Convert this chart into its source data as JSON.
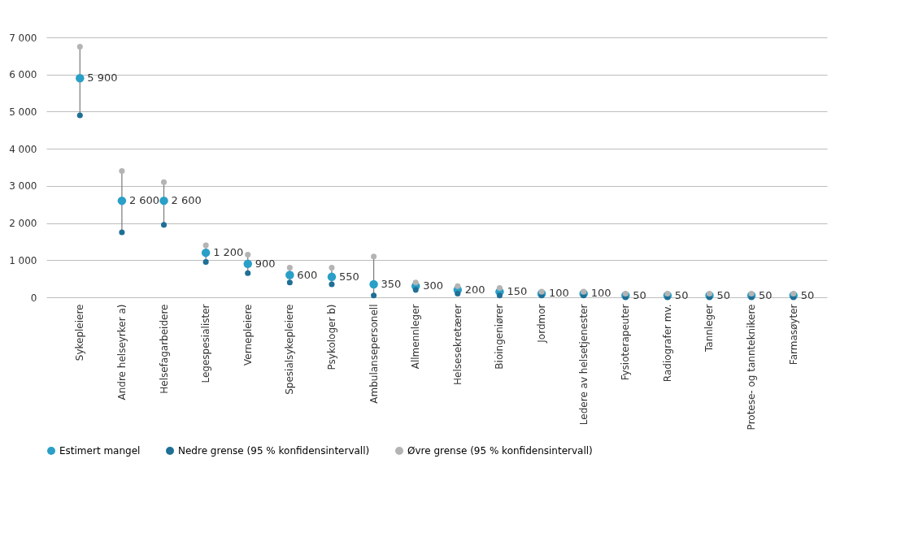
{
  "chart_data": {
    "type": "scatter",
    "categories": [
      "Sykepleiere",
      "Andre helseyrker a)",
      "Helsefagarbeidere",
      "Legespesialister",
      "Vernepleiere",
      "Spesialsykepleiere",
      "Psykologer b)",
      "Ambulansepersonell",
      "Allmennleger",
      "Helsesekretærer",
      "Bioingeniører",
      "Jordmor",
      "Ledere av helsetjenester",
      "Fysioterapeuter",
      "Radiografer mv.",
      "Tannleger",
      "Protese- og tannteknikere",
      "Farmasøyter"
    ],
    "series": [
      {
        "name": "Estimert mangel",
        "color": "#2a9fc7",
        "marker": "circle",
        "values": [
          5900,
          2600,
          2600,
          1200,
          900,
          600,
          550,
          350,
          300,
          200,
          150,
          100,
          100,
          50,
          50,
          50,
          50,
          50
        ],
        "value_labels": [
          "5 900",
          "2 600",
          "2 600",
          "1 200",
          "900",
          "600",
          "550",
          "350",
          "300",
          "200",
          "150",
          "100",
          "100",
          "50",
          "50",
          "50",
          "50",
          "50"
        ]
      },
      {
        "name": "Nedre grense (95 % konfidensintervall)",
        "color": "#1f6f96",
        "marker": "circle",
        "values": [
          4900,
          1750,
          1950,
          950,
          650,
          400,
          350,
          50,
          200,
          100,
          50,
          50,
          50,
          0,
          0,
          0,
          0,
          0
        ]
      },
      {
        "name": "Øvre grense (95 % konfidensintervall)",
        "color": "#b4b4b4",
        "marker": "circle",
        "values": [
          6750,
          3400,
          3100,
          1400,
          1150,
          800,
          800,
          1100,
          400,
          300,
          250,
          150,
          150,
          100,
          100,
          100,
          100,
          100
        ]
      }
    ],
    "ylim": [
      0,
      7000
    ],
    "yticks": [
      {
        "value": 0,
        "label": "0"
      },
      {
        "value": 1000,
        "label": "1 000"
      },
      {
        "value": 2000,
        "label": "2 000"
      },
      {
        "value": 3000,
        "label": "3 000"
      },
      {
        "value": 4000,
        "label": "4 000"
      },
      {
        "value": 5000,
        "label": "5 000"
      },
      {
        "value": 6000,
        "label": "6 000"
      },
      {
        "value": 7000,
        "label": "7 000"
      }
    ],
    "grid": "y",
    "legend": "bottom"
  }
}
